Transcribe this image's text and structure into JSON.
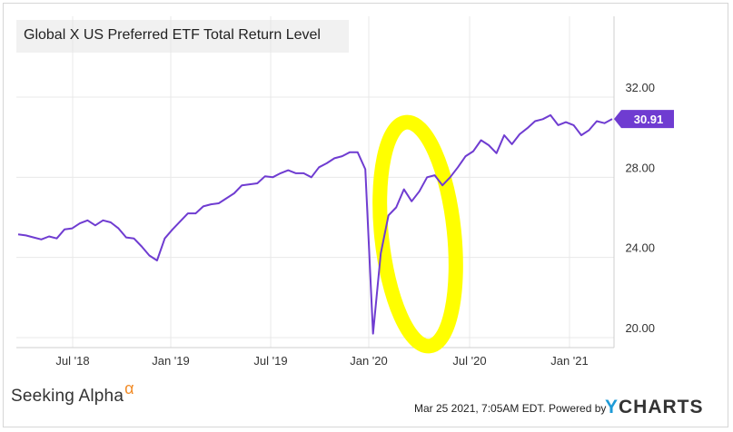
{
  "chart_data": {
    "type": "line",
    "title": "Global X US Preferred ETF Total Return Level",
    "xlabel": "",
    "ylabel": "",
    "ylim": [
      19.5,
      35
    ],
    "x_tick_labels": [
      "Jul '18",
      "Jan '19",
      "Jul '19",
      "Jan '20",
      "Jul '20",
      "Jan '21"
    ],
    "y_tick_labels": [
      "20.00",
      "24.00",
      "28.00",
      "32.00"
    ],
    "y_ticks": [
      20,
      24,
      28,
      32
    ],
    "grid": true,
    "last_value_label": "30.91",
    "series": [
      {
        "color": "#6f3cd1",
        "values": [
          25.15,
          25.1,
          25.0,
          24.9,
          25.05,
          24.95,
          25.4,
          25.45,
          25.7,
          25.85,
          25.6,
          25.85,
          25.75,
          25.45,
          25.0,
          24.95,
          24.55,
          24.1,
          23.85,
          24.95,
          25.4,
          25.8,
          26.2,
          26.2,
          26.55,
          26.65,
          26.7,
          26.95,
          27.2,
          27.6,
          27.65,
          27.7,
          28.05,
          28.0,
          28.2,
          28.35,
          28.2,
          28.2,
          28.0,
          28.5,
          28.7,
          28.95,
          29.05,
          29.25,
          29.25,
          28.4,
          20.2,
          24.2,
          26.1,
          26.5,
          27.4,
          26.8,
          27.3,
          28.0,
          28.1,
          27.6,
          28.0,
          28.5,
          29.05,
          29.3,
          29.85,
          29.6,
          29.2,
          30.1,
          29.65,
          30.15,
          30.45,
          30.8,
          30.9,
          31.1,
          30.6,
          30.75,
          30.6,
          30.1,
          30.35,
          30.8,
          30.7,
          30.91
        ]
      }
    ]
  },
  "footer": {
    "brand": "Seeking Alpha",
    "brand_symbol": "α",
    "timestamp": "Mar 25 2021, 7:05AM EDT.",
    "powered_by": "Powered by",
    "ycharts_y": "Y",
    "ycharts_rest": "CHARTS"
  },
  "highlight_color": "#ffff00"
}
